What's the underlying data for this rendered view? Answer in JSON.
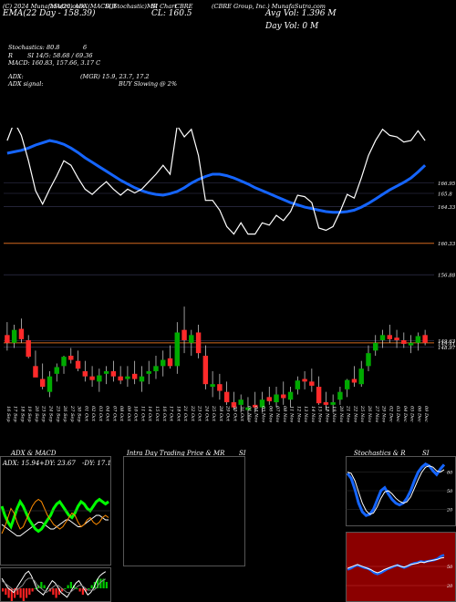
{
  "header": {
    "line1": "(C) 2024 MunafaSutra.com",
    "line2": "MA(20)  ADX(MACD,R",
    "line3": "SI,Stochastic)MR",
    "line4": "SI Chart",
    "line5": "CBRE",
    "company": "(CBRE Group, Inc.) MunafaSutra.com",
    "ema_label": "EMA(22 Day - 158.39)",
    "close_label": "CL: 160.5",
    "avg_vol": "Avg Vol: 1.396   M",
    "day_vol": "Day Vol: 0   M"
  },
  "indicators": {
    "stochastic": "Stochastics: 80.8",
    "stochastic_flag": "6",
    "rsi": "SI 14/5: 58.68 / 69.36",
    "rsi_prefix": "R",
    "macd": "MACD: 160.83, 157.66, 3.17 C",
    "adx": "ADX:",
    "adx_values": "(MGR) 15.9, 23.7, 17.2",
    "adx_signal": "ADX signal:",
    "buy_signal": "BUY Slowing @ 2%"
  },
  "colors": {
    "background": "#000000",
    "ema": "#1565ff",
    "price": "#ffffff",
    "up": "#00aa00",
    "down": "#ff2a2a",
    "level": "#d2691e"
  },
  "chart_data": [
    {
      "type": "candlestick",
      "title": "CBRE",
      "x": [
        "16 Sep",
        "17 Sep",
        "18 Sep",
        "19 Sep",
        "20 Sep",
        "23 Sep",
        "24 Sep",
        "25 Sep",
        "26 Sep",
        "27 Sep",
        "30 Sep",
        "01 Oct",
        "02 Oct",
        "03 Oct",
        "04 Oct",
        "07 Oct",
        "08 Oct",
        "09 Oct",
        "10 Oct",
        "11 Oct",
        "14 Oct",
        "15 Oct",
        "16 Oct",
        "17 Oct",
        "18 Oct",
        "21 Oct",
        "22 Oct",
        "23 Oct",
        "24 Oct",
        "25 Oct",
        "28 Oct",
        "29 Oct",
        "30 Oct",
        "31 Oct",
        "01 Nov",
        "04 Nov",
        "05 Nov",
        "06 Nov",
        "07 Nov",
        "08 Nov",
        "11 Nov",
        "12 Nov",
        "13 Nov",
        "14 Nov",
        "15 Nov",
        "18 Nov",
        "19 Nov",
        "20 Nov",
        "21 Nov",
        "22 Nov",
        "25 Nov",
        "26 Nov",
        "27 Nov",
        "29 Nov",
        "02 Dec",
        "03 Dec",
        "04 Dec",
        "05 Dec",
        "06 Dec",
        "09 Dec"
      ],
      "open": [
        162.0,
        160.5,
        163.2,
        161.0,
        156.0,
        153.5,
        151.0,
        154.5,
        156.0,
        158.0,
        157.0,
        155.0,
        154.0,
        153.0,
        154.5,
        155.0,
        154.0,
        153.5,
        154.5,
        153.0,
        154.5,
        155.0,
        156.0,
        157.5,
        156.0,
        163.0,
        160.5,
        162.5,
        158.0,
        152.0,
        152.5,
        151.0,
        149.0,
        148.5,
        147.5,
        148.5,
        148.0,
        150.0,
        149.0,
        150.5,
        149.5,
        151.5,
        153.5,
        153.0,
        152.0,
        149.0,
        148.5,
        149.5,
        151.5,
        153.5,
        152.5,
        156.0,
        159.0,
        161.0,
        162.0,
        161.5,
        161.0,
        160.0,
        160.5,
        162.0
      ],
      "high": [
        164.5,
        164.0,
        165.2,
        162.0,
        159.0,
        156.5,
        155.0,
        156.5,
        158.0,
        159.5,
        159.0,
        157.0,
        156.0,
        155.5,
        156.0,
        157.0,
        156.0,
        156.0,
        157.0,
        156.0,
        157.0,
        158.0,
        159.0,
        160.0,
        164.5,
        167.5,
        163.0,
        164.0,
        160.0,
        155.0,
        154.5,
        153.0,
        151.0,
        150.5,
        150.0,
        151.0,
        151.0,
        152.0,
        152.0,
        153.0,
        152.0,
        154.0,
        155.0,
        155.5,
        154.0,
        151.0,
        150.5,
        152.0,
        153.5,
        156.0,
        157.0,
        160.0,
        162.0,
        163.0,
        164.0,
        163.0,
        162.5,
        162.0,
        162.5,
        163.0
      ],
      "low": [
        159.0,
        159.5,
        160.5,
        157.5,
        154.0,
        151.5,
        150.0,
        153.0,
        154.5,
        156.5,
        155.0,
        153.0,
        152.0,
        151.0,
        152.5,
        153.0,
        152.5,
        152.0,
        152.5,
        151.0,
        152.5,
        153.5,
        154.0,
        155.5,
        154.5,
        158.5,
        158.0,
        157.5,
        151.5,
        150.0,
        149.5,
        148.5,
        147.5,
        147.0,
        145.5,
        147.0,
        147.0,
        148.5,
        148.0,
        148.5,
        148.0,
        150.5,
        151.5,
        151.0,
        148.5,
        147.5,
        147.0,
        148.5,
        150.0,
        152.0,
        152.0,
        155.0,
        158.0,
        159.5,
        160.5,
        159.5,
        159.5,
        158.5,
        159.0,
        160.0
      ],
      "close": [
        160.5,
        163.0,
        161.2,
        157.8,
        153.8,
        152.0,
        154.0,
        155.8,
        157.8,
        157.2,
        155.5,
        154.0,
        153.3,
        154.2,
        155.0,
        154.0,
        153.2,
        154.0,
        153.5,
        154.0,
        155.0,
        156.0,
        157.2,
        156.0,
        162.5,
        161.0,
        162.0,
        158.5,
        152.5,
        152.5,
        151.2,
        149.0,
        148.0,
        149.5,
        148.0,
        148.0,
        149.5,
        149.2,
        150.5,
        149.8,
        151.0,
        153.2,
        153.0,
        152.2,
        148.8,
        148.5,
        149.0,
        151.0,
        153.3,
        152.8,
        155.5,
        158.5,
        160.5,
        162.0,
        161.2,
        161.0,
        160.3,
        160.5,
        161.8,
        160.5
      ],
      "ylim": [
        143,
        173
      ],
      "levels": [
        {
          "value": 166.95,
          "label": "166.95"
        },
        {
          "value": 165.8,
          "label": "165.8"
        },
        {
          "value": 164.33,
          "label": "164.33"
        },
        {
          "value": 160.33,
          "label": "160.33"
        },
        {
          "value": 156.88,
          "label": "156.88"
        },
        {
          "value": 149.63,
          "label": "149.63"
        },
        {
          "value": 149.41,
          "label": "149.41"
        },
        {
          "value": 148.97,
          "label": "148.97"
        }
      ],
      "ema_series": [
        158.8,
        159.0,
        159.2,
        159.5,
        159.9,
        160.2,
        160.5,
        160.3,
        160.0,
        159.5,
        158.9,
        158.2,
        157.6,
        157.0,
        156.4,
        155.8,
        155.2,
        154.7,
        154.2,
        153.8,
        153.5,
        153.3,
        153.2,
        153.4,
        153.7,
        154.2,
        154.8,
        155.3,
        155.7,
        156.0,
        156.0,
        155.8,
        155.5,
        155.1,
        154.7,
        154.2,
        153.8,
        153.4,
        153.0,
        152.6,
        152.2,
        151.9,
        151.6,
        151.4,
        151.2,
        151.0,
        150.9,
        150.9,
        151.0,
        151.2,
        151.6,
        152.1,
        152.7,
        153.3,
        153.9,
        154.4,
        154.9,
        155.5,
        156.3,
        157.2
      ]
    },
    {
      "type": "line",
      "title": "ADX  & MACD",
      "series": [
        {
          "name": "ADX",
          "values": [
            14,
            13,
            12,
            11,
            10,
            9,
            9,
            10,
            11,
            12,
            13,
            14,
            15,
            15,
            14,
            13,
            12,
            12,
            13,
            14,
            15,
            16,
            16,
            15,
            14,
            13,
            13,
            14,
            15,
            16,
            17,
            18,
            18,
            17,
            16,
            16
          ]
        },
        {
          "name": "+DI",
          "values": [
            22,
            18,
            15,
            13,
            17,
            21,
            24,
            22,
            19,
            16,
            14,
            12,
            11,
            12,
            14,
            16,
            18,
            21,
            23,
            24,
            22,
            20,
            18,
            17,
            19,
            22,
            24,
            23,
            21,
            20,
            22,
            24,
            25,
            24,
            23,
            24
          ]
        },
        {
          "name": "-DI",
          "values": [
            10,
            13,
            17,
            21,
            19,
            15,
            12,
            13,
            16,
            19,
            22,
            24,
            25,
            24,
            21,
            18,
            16,
            14,
            13,
            12,
            13,
            15,
            17,
            19,
            18,
            15,
            13,
            14,
            16,
            17,
            15,
            14,
            15,
            17,
            18,
            17
          ]
        }
      ],
      "labels": {
        "adx": "ADX: 15.94",
        "pdi": "+DY: 23.67",
        "mdi": "-DY: 17.16"
      },
      "ylim": [
        0,
        40
      ]
    },
    {
      "type": "bar",
      "title": "MACD",
      "values": [
        -1,
        -2,
        -3,
        -4,
        -3,
        -2,
        -3,
        -4,
        -3,
        -2,
        -1,
        0,
        1,
        2,
        1,
        0,
        -1,
        -2,
        -3,
        -2,
        -1,
        0,
        1,
        2,
        1,
        0,
        -1,
        -2,
        -1,
        0,
        1,
        2,
        3,
        3,
        3,
        2
      ],
      "series": [
        {
          "name": "MACD",
          "values": [
            158,
            156,
            154,
            153,
            152,
            154,
            156,
            158,
            160,
            161,
            159,
            156,
            153,
            152,
            151,
            153,
            155,
            157,
            156,
            154,
            152,
            151,
            150,
            152,
            154,
            156,
            157,
            155,
            153,
            151,
            152,
            154,
            157,
            159,
            160,
            160.8
          ]
        },
        {
          "name": "Signal",
          "values": [
            157,
            156,
            155,
            154,
            153,
            153,
            154,
            155,
            157,
            158,
            158,
            157,
            155,
            154,
            153,
            152,
            153,
            154,
            155,
            155,
            154,
            153,
            152,
            152,
            153,
            154,
            155,
            155,
            154,
            153,
            153,
            153,
            154,
            156,
            157,
            157.7
          ]
        }
      ]
    },
    {
      "type": "line",
      "title": "Stochastics & R",
      "series": [
        {
          "name": "Stochastics",
          "values": [
            78,
            70,
            52,
            30,
            16,
            10,
            12,
            20,
            35,
            50,
            55,
            45,
            36,
            30,
            27,
            30,
            38,
            50,
            66,
            80,
            88,
            93,
            90,
            82,
            76,
            85,
            92
          ]
        },
        {
          "name": "Signal",
          "values": [
            80,
            78,
            66,
            48,
            30,
            18,
            12,
            14,
            24,
            38,
            48,
            50,
            45,
            38,
            33,
            30,
            32,
            40,
            54,
            68,
            80,
            88,
            90,
            88,
            82,
            80,
            84
          ]
        }
      ],
      "ticks": [
        "80",
        "50",
        "20"
      ],
      "ylim": [
        0,
        100
      ]
    },
    {
      "type": "line",
      "title": "SI",
      "series": [
        {
          "name": "RSI",
          "values": [
            45,
            47,
            50,
            52,
            50,
            48,
            47,
            44,
            40,
            38,
            40,
            43,
            46,
            48,
            50,
            52,
            50,
            48,
            50,
            53,
            55,
            56,
            58,
            57,
            58,
            59,
            60,
            62,
            66,
            68
          ]
        },
        {
          "name": "Price",
          "values": [
            47,
            49,
            51,
            53,
            51,
            49,
            47,
            45,
            42,
            40,
            42,
            45,
            47,
            49,
            51,
            52,
            50,
            49,
            51,
            53,
            54,
            55,
            57,
            56,
            58,
            59,
            60,
            61,
            63,
            64
          ]
        }
      ],
      "ticks": [
        "50",
        "20"
      ],
      "ylim": [
        0,
        100
      ]
    }
  ],
  "panels": {
    "adx_title": "ADX  & MACD",
    "intraday_title": "Intra  Day Trading Price  & MR",
    "intraday_si": "SI",
    "stoch_title": "Stochastics & R",
    "stoch_si": "SI"
  }
}
